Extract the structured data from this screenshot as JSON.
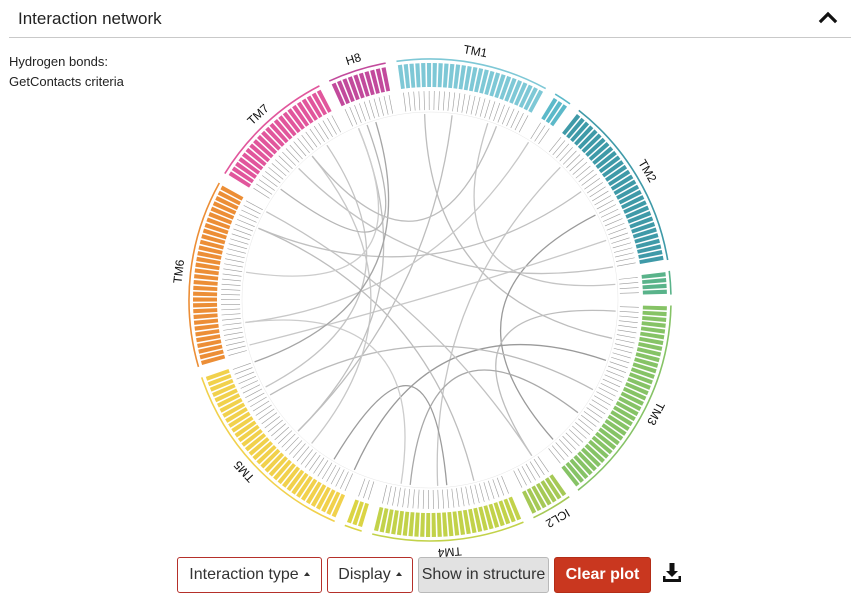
{
  "panel": {
    "title": "Interaction network"
  },
  "note": {
    "line1": "Hydrogen bonds:",
    "line2": "GetContacts criteria"
  },
  "icons": {
    "collapse": "chevron-up-icon",
    "download": "download-icon"
  },
  "diagram": {
    "type": "circos-chord",
    "segments": [
      {
        "label": "TM1",
        "color": "#7ec8d6",
        "residues": 26
      },
      {
        "label": "",
        "color": "#5cb9c9",
        "residues": 3
      },
      {
        "label": "TM2",
        "color": "#3f9aa8",
        "residues": 30
      },
      {
        "label": "",
        "color": "#59b38a",
        "residues": 4
      },
      {
        "label": "TM3",
        "color": "#86c366",
        "residues": 36
      },
      {
        "label": "ICL2",
        "color": "#a6c956",
        "residues": 7
      },
      {
        "label": "TM4",
        "color": "#c2d24a",
        "residues": 26
      },
      {
        "label": "",
        "color": "#dbd444",
        "residues": 3
      },
      {
        "label": "TM5",
        "color": "#f1d14c",
        "residues": 34
      },
      {
        "label": "TM6",
        "color": "#ec8e36",
        "residues": 32
      },
      {
        "label": "TM7",
        "color": "#e1569c",
        "residues": 22
      },
      {
        "label": "H8",
        "color": "#c24a9c",
        "residues": 10
      }
    ]
  },
  "toolbar": {
    "interaction_type": "Interaction type",
    "display": "Display",
    "show_in_structure": "Show in structure",
    "clear_plot": "Clear plot"
  }
}
